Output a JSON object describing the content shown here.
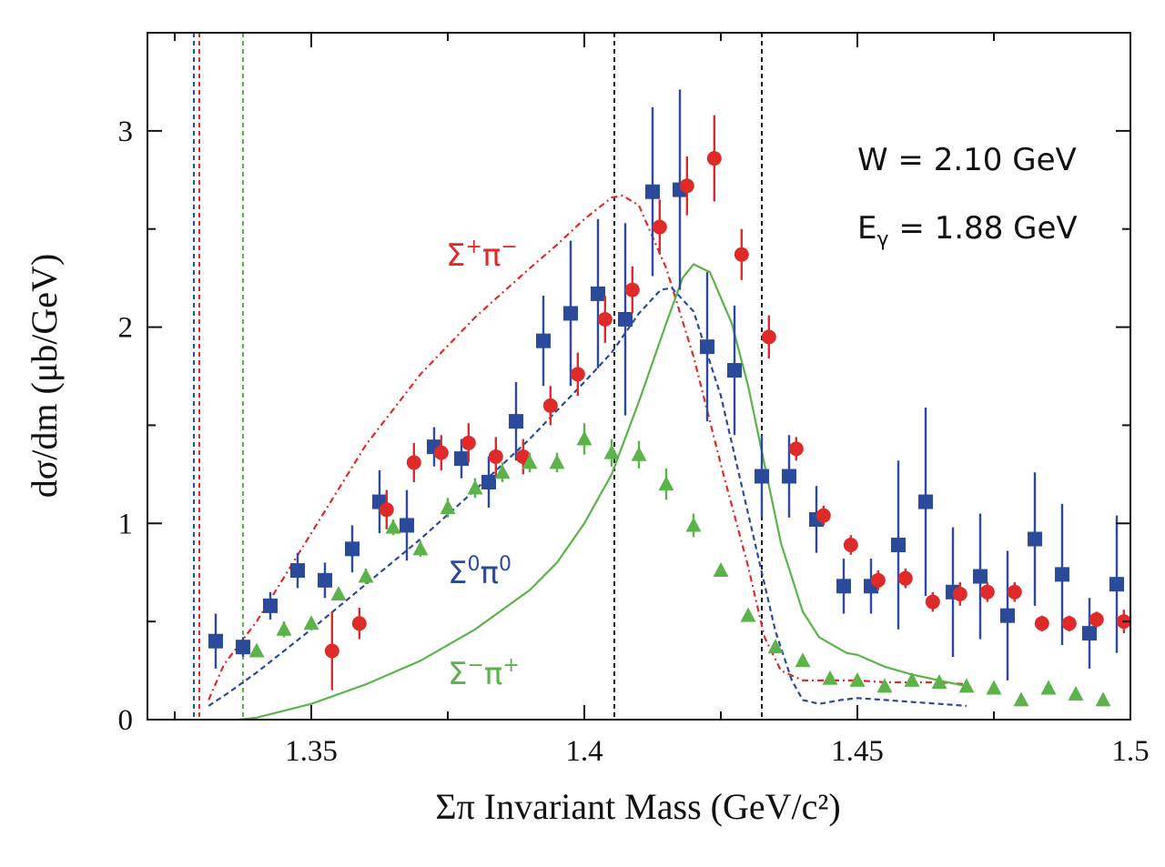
{
  "chart_data": {
    "type": "scatter",
    "xlabel": "Σπ Invariant Mass (GeV/c²)",
    "ylabel": "dσ/dm (μb/GeV)",
    "xlim": [
      1.32,
      1.5
    ],
    "ylim": [
      0,
      3.5
    ],
    "xticks": [
      1.35,
      1.4,
      1.45,
      1.5
    ],
    "xtick_labels": [
      "1.35",
      "1.4",
      "1.45",
      "1.5"
    ],
    "yticks": [
      0,
      1,
      2,
      3
    ],
    "ytick_labels": [
      "0",
      "1",
      "2",
      "3"
    ],
    "grid": false,
    "annotations": {
      "w": "W = 2.10 GeV",
      "egamma_prefix": "E",
      "egamma_sub": "γ",
      "egamma_suffix": " = 1.88 GeV"
    },
    "series": [
      {
        "name": "Σ⁰π⁰",
        "label_base": "Σ",
        "label_sup1": "0",
        "label_pi": "π",
        "label_sup2": "0",
        "color": "#2b4a9a",
        "marker": "square",
        "points": [
          {
            "x": 1.3325,
            "y": 0.4,
            "err": 0.14
          },
          {
            "x": 1.3375,
            "y": 0.37,
            "err": 0.05
          },
          {
            "x": 1.3425,
            "y": 0.58,
            "err": 0.07
          },
          {
            "x": 1.3475,
            "y": 0.76,
            "err": 0.09
          },
          {
            "x": 1.3525,
            "y": 0.71,
            "err": 0.09
          },
          {
            "x": 1.3575,
            "y": 0.87,
            "err": 0.12
          },
          {
            "x": 1.3625,
            "y": 1.11,
            "err": 0.16
          },
          {
            "x": 1.3675,
            "y": 0.99,
            "err": 0.18
          },
          {
            "x": 1.3725,
            "y": 1.39,
            "err": 0.1
          },
          {
            "x": 1.3775,
            "y": 1.33,
            "err": 0.1
          },
          {
            "x": 1.3825,
            "y": 1.21,
            "err": 0.13
          },
          {
            "x": 1.3875,
            "y": 1.52,
            "err": 0.2
          },
          {
            "x": 1.3925,
            "y": 1.93,
            "err": 0.23
          },
          {
            "x": 1.3975,
            "y": 2.07,
            "err": 0.37
          },
          {
            "x": 1.4025,
            "y": 2.17,
            "err": 0.38
          },
          {
            "x": 1.4075,
            "y": 2.04,
            "err": 0.49
          },
          {
            "x": 1.4125,
            "y": 2.69,
            "err": 0.43
          },
          {
            "x": 1.4175,
            "y": 2.7,
            "err": 0.51
          },
          {
            "x": 1.4225,
            "y": 1.9,
            "err": 0.38
          },
          {
            "x": 1.4275,
            "y": 1.78,
            "err": 0.33
          },
          {
            "x": 1.4325,
            "y": 1.24,
            "err": 0.21
          },
          {
            "x": 1.4375,
            "y": 1.24,
            "err": 0.21
          },
          {
            "x": 1.4425,
            "y": 1.02,
            "err": 0.17
          },
          {
            "x": 1.4475,
            "y": 0.68,
            "err": 0.14
          },
          {
            "x": 1.4525,
            "y": 0.68,
            "err": 0.14
          },
          {
            "x": 1.4575,
            "y": 0.89,
            "err": 0.43
          },
          {
            "x": 1.4625,
            "y": 1.11,
            "err": 0.48
          },
          {
            "x": 1.4675,
            "y": 0.65,
            "err": 0.33
          },
          {
            "x": 1.4725,
            "y": 0.73,
            "err": 0.32
          },
          {
            "x": 1.4775,
            "y": 0.53,
            "err": 0.33
          },
          {
            "x": 1.4825,
            "y": 0.92,
            "err": 0.34
          },
          {
            "x": 1.4875,
            "y": 0.74,
            "err": 0.36
          },
          {
            "x": 1.4925,
            "y": 0.44,
            "err": 0.18
          },
          {
            "x": 1.4975,
            "y": 0.69,
            "err": 0.35
          }
        ]
      },
      {
        "name": "Σ⁺π⁻",
        "label_base": "Σ",
        "label_sup1": "+",
        "label_pi": "π",
        "label_sup2": "−",
        "color": "#e02a2a",
        "marker": "circle",
        "points": [
          {
            "x": 1.3538,
            "y": 0.35,
            "err": 0.2
          },
          {
            "x": 1.3588,
            "y": 0.49,
            "err": 0.08
          },
          {
            "x": 1.3638,
            "y": 1.07,
            "err": 0.1
          },
          {
            "x": 1.3688,
            "y": 1.31,
            "err": 0.1
          },
          {
            "x": 1.3738,
            "y": 1.36,
            "err": 0.09
          },
          {
            "x": 1.3788,
            "y": 1.41,
            "err": 0.1
          },
          {
            "x": 1.3838,
            "y": 1.34,
            "err": 0.1
          },
          {
            "x": 1.3888,
            "y": 1.34,
            "err": 0.09
          },
          {
            "x": 1.3938,
            "y": 1.6,
            "err": 0.1
          },
          {
            "x": 1.3988,
            "y": 1.76,
            "err": 0.11
          },
          {
            "x": 1.4038,
            "y": 2.04,
            "err": 0.12
          },
          {
            "x": 1.4088,
            "y": 2.19,
            "err": 0.12
          },
          {
            "x": 1.4138,
            "y": 2.51,
            "err": 0.14
          },
          {
            "x": 1.4188,
            "y": 2.72,
            "err": 0.15
          },
          {
            "x": 1.4238,
            "y": 2.86,
            "err": 0.22
          },
          {
            "x": 1.4288,
            "y": 2.37,
            "err": 0.13
          },
          {
            "x": 1.4338,
            "y": 1.95,
            "err": 0.11
          },
          {
            "x": 1.4388,
            "y": 1.38,
            "err": 0.06
          },
          {
            "x": 1.4438,
            "y": 1.04,
            "err": 0.05
          },
          {
            "x": 1.4488,
            "y": 0.89,
            "err": 0.05
          },
          {
            "x": 1.4538,
            "y": 0.71,
            "err": 0.05
          },
          {
            "x": 1.4588,
            "y": 0.72,
            "err": 0.05
          },
          {
            "x": 1.4638,
            "y": 0.6,
            "err": 0.05
          },
          {
            "x": 1.4688,
            "y": 0.64,
            "err": 0.06
          },
          {
            "x": 1.4738,
            "y": 0.65,
            "err": 0.05
          },
          {
            "x": 1.4788,
            "y": 0.65,
            "err": 0.05
          },
          {
            "x": 1.4838,
            "y": 0.49,
            "err": 0.04
          },
          {
            "x": 1.4888,
            "y": 0.49,
            "err": 0.04
          },
          {
            "x": 1.4938,
            "y": 0.51,
            "err": 0.04
          },
          {
            "x": 1.4988,
            "y": 0.5,
            "err": 0.06
          }
        ]
      },
      {
        "name": "Σ⁻π⁺",
        "label_base": "Σ",
        "label_sup1": "−",
        "label_pi": "π",
        "label_sup2": "+",
        "color": "#5bb34a",
        "marker": "triangle",
        "points": [
          {
            "x": 1.34,
            "y": 0.35,
            "err": 0.03
          },
          {
            "x": 1.345,
            "y": 0.46,
            "err": 0.04
          },
          {
            "x": 1.35,
            "y": 0.49,
            "err": 0.03
          },
          {
            "x": 1.355,
            "y": 0.64,
            "err": 0.03
          },
          {
            "x": 1.36,
            "y": 0.73,
            "err": 0.04
          },
          {
            "x": 1.365,
            "y": 0.98,
            "err": 0.04
          },
          {
            "x": 1.37,
            "y": 0.87,
            "err": 0.04
          },
          {
            "x": 1.375,
            "y": 1.08,
            "err": 0.05
          },
          {
            "x": 1.38,
            "y": 1.18,
            "err": 0.05
          },
          {
            "x": 1.385,
            "y": 1.26,
            "err": 0.05
          },
          {
            "x": 1.39,
            "y": 1.31,
            "err": 0.05
          },
          {
            "x": 1.395,
            "y": 1.31,
            "err": 0.05
          },
          {
            "x": 1.4,
            "y": 1.43,
            "err": 0.08
          },
          {
            "x": 1.405,
            "y": 1.36,
            "err": 0.07
          },
          {
            "x": 1.41,
            "y": 1.35,
            "err": 0.07
          },
          {
            "x": 1.415,
            "y": 1.2,
            "err": 0.08
          },
          {
            "x": 1.42,
            "y": 0.99,
            "err": 0.06
          },
          {
            "x": 1.425,
            "y": 0.76,
            "err": 0.03
          },
          {
            "x": 1.43,
            "y": 0.53,
            "err": 0.03
          },
          {
            "x": 1.435,
            "y": 0.37,
            "err": 0.02
          },
          {
            "x": 1.44,
            "y": 0.3,
            "err": 0.02
          },
          {
            "x": 1.445,
            "y": 0.21,
            "err": 0.02
          },
          {
            "x": 1.45,
            "y": 0.2,
            "err": 0.02
          },
          {
            "x": 1.455,
            "y": 0.17,
            "err": 0.02
          },
          {
            "x": 1.46,
            "y": 0.2,
            "err": 0.02
          },
          {
            "x": 1.465,
            "y": 0.19,
            "err": 0.02
          },
          {
            "x": 1.47,
            "y": 0.17,
            "err": 0.02
          },
          {
            "x": 1.475,
            "y": 0.16,
            "err": 0.02
          },
          {
            "x": 1.48,
            "y": 0.1,
            "err": 0.02
          },
          {
            "x": 1.485,
            "y": 0.16,
            "err": 0.03
          },
          {
            "x": 1.49,
            "y": 0.13,
            "err": 0.02
          },
          {
            "x": 1.495,
            "y": 0.1,
            "err": 0.02
          }
        ]
      }
    ],
    "curves": [
      {
        "series": "Σ⁺π⁻",
        "color": "#e02a2a",
        "style": "dash-dot",
        "points": [
          [
            1.3312,
            0.1
          ],
          [
            1.334,
            0.28
          ],
          [
            1.34,
            0.5
          ],
          [
            1.35,
            0.95
          ],
          [
            1.36,
            1.4
          ],
          [
            1.37,
            1.76
          ],
          [
            1.38,
            2.05
          ],
          [
            1.39,
            2.3
          ],
          [
            1.395,
            2.42
          ],
          [
            1.4,
            2.55
          ],
          [
            1.405,
            2.66
          ],
          [
            1.407,
            2.67
          ],
          [
            1.41,
            2.62
          ],
          [
            1.415,
            2.3
          ],
          [
            1.42,
            1.85
          ],
          [
            1.425,
            1.3
          ],
          [
            1.43,
            0.78
          ],
          [
            1.433,
            0.42
          ],
          [
            1.436,
            0.25
          ],
          [
            1.44,
            0.2
          ],
          [
            1.445,
            0.2
          ],
          [
            1.45,
            0.2
          ],
          [
            1.455,
            0.19
          ],
          [
            1.46,
            0.19
          ],
          [
            1.465,
            0.19
          ],
          [
            1.47,
            0.18
          ]
        ]
      },
      {
        "series": "Σ⁰π⁰",
        "color": "#2b4a9a",
        "style": "dashed",
        "points": [
          [
            1.3312,
            0.07
          ],
          [
            1.335,
            0.14
          ],
          [
            1.34,
            0.24
          ],
          [
            1.35,
            0.46
          ],
          [
            1.36,
            0.69
          ],
          [
            1.37,
            0.92
          ],
          [
            1.38,
            1.17
          ],
          [
            1.39,
            1.43
          ],
          [
            1.4,
            1.72
          ],
          [
            1.405,
            1.87
          ],
          [
            1.41,
            2.07
          ],
          [
            1.414,
            2.19
          ],
          [
            1.416,
            2.2
          ],
          [
            1.42,
            2.08
          ],
          [
            1.425,
            1.65
          ],
          [
            1.43,
            1.05
          ],
          [
            1.435,
            0.45
          ],
          [
            1.438,
            0.2
          ],
          [
            1.44,
            0.1
          ],
          [
            1.443,
            0.08
          ],
          [
            1.447,
            0.1
          ],
          [
            1.45,
            0.11
          ],
          [
            1.455,
            0.1
          ],
          [
            1.46,
            0.09
          ],
          [
            1.465,
            0.08
          ],
          [
            1.47,
            0.07
          ]
        ]
      },
      {
        "series": "Σ⁻π⁺",
        "color": "#5bb34a",
        "style": "solid",
        "points": [
          [
            1.3365,
            0.0
          ],
          [
            1.34,
            0.01
          ],
          [
            1.35,
            0.08
          ],
          [
            1.36,
            0.18
          ],
          [
            1.37,
            0.3
          ],
          [
            1.38,
            0.46
          ],
          [
            1.39,
            0.66
          ],
          [
            1.395,
            0.8
          ],
          [
            1.4,
            1.0
          ],
          [
            1.405,
            1.25
          ],
          [
            1.41,
            1.62
          ],
          [
            1.415,
            2.02
          ],
          [
            1.418,
            2.25
          ],
          [
            1.42,
            2.32
          ],
          [
            1.423,
            2.28
          ],
          [
            1.427,
            2.02
          ],
          [
            1.43,
            1.7
          ],
          [
            1.433,
            1.3
          ],
          [
            1.436,
            0.9
          ],
          [
            1.44,
            0.55
          ],
          [
            1.443,
            0.42
          ],
          [
            1.448,
            0.34
          ],
          [
            1.45,
            0.33
          ],
          [
            1.455,
            0.27
          ],
          [
            1.46,
            0.23
          ],
          [
            1.465,
            0.2
          ],
          [
            1.47,
            0.17
          ]
        ]
      }
    ],
    "threshold_lines": [
      {
        "x": 1.3285,
        "color": "#2b4a9a"
      },
      {
        "x": 1.3295,
        "color": "#e02a2a"
      },
      {
        "x": 1.3375,
        "color": "#5bb34a"
      },
      {
        "x": 1.4055,
        "color": "#111111"
      },
      {
        "x": 1.4325,
        "color": "#111111"
      }
    ]
  }
}
